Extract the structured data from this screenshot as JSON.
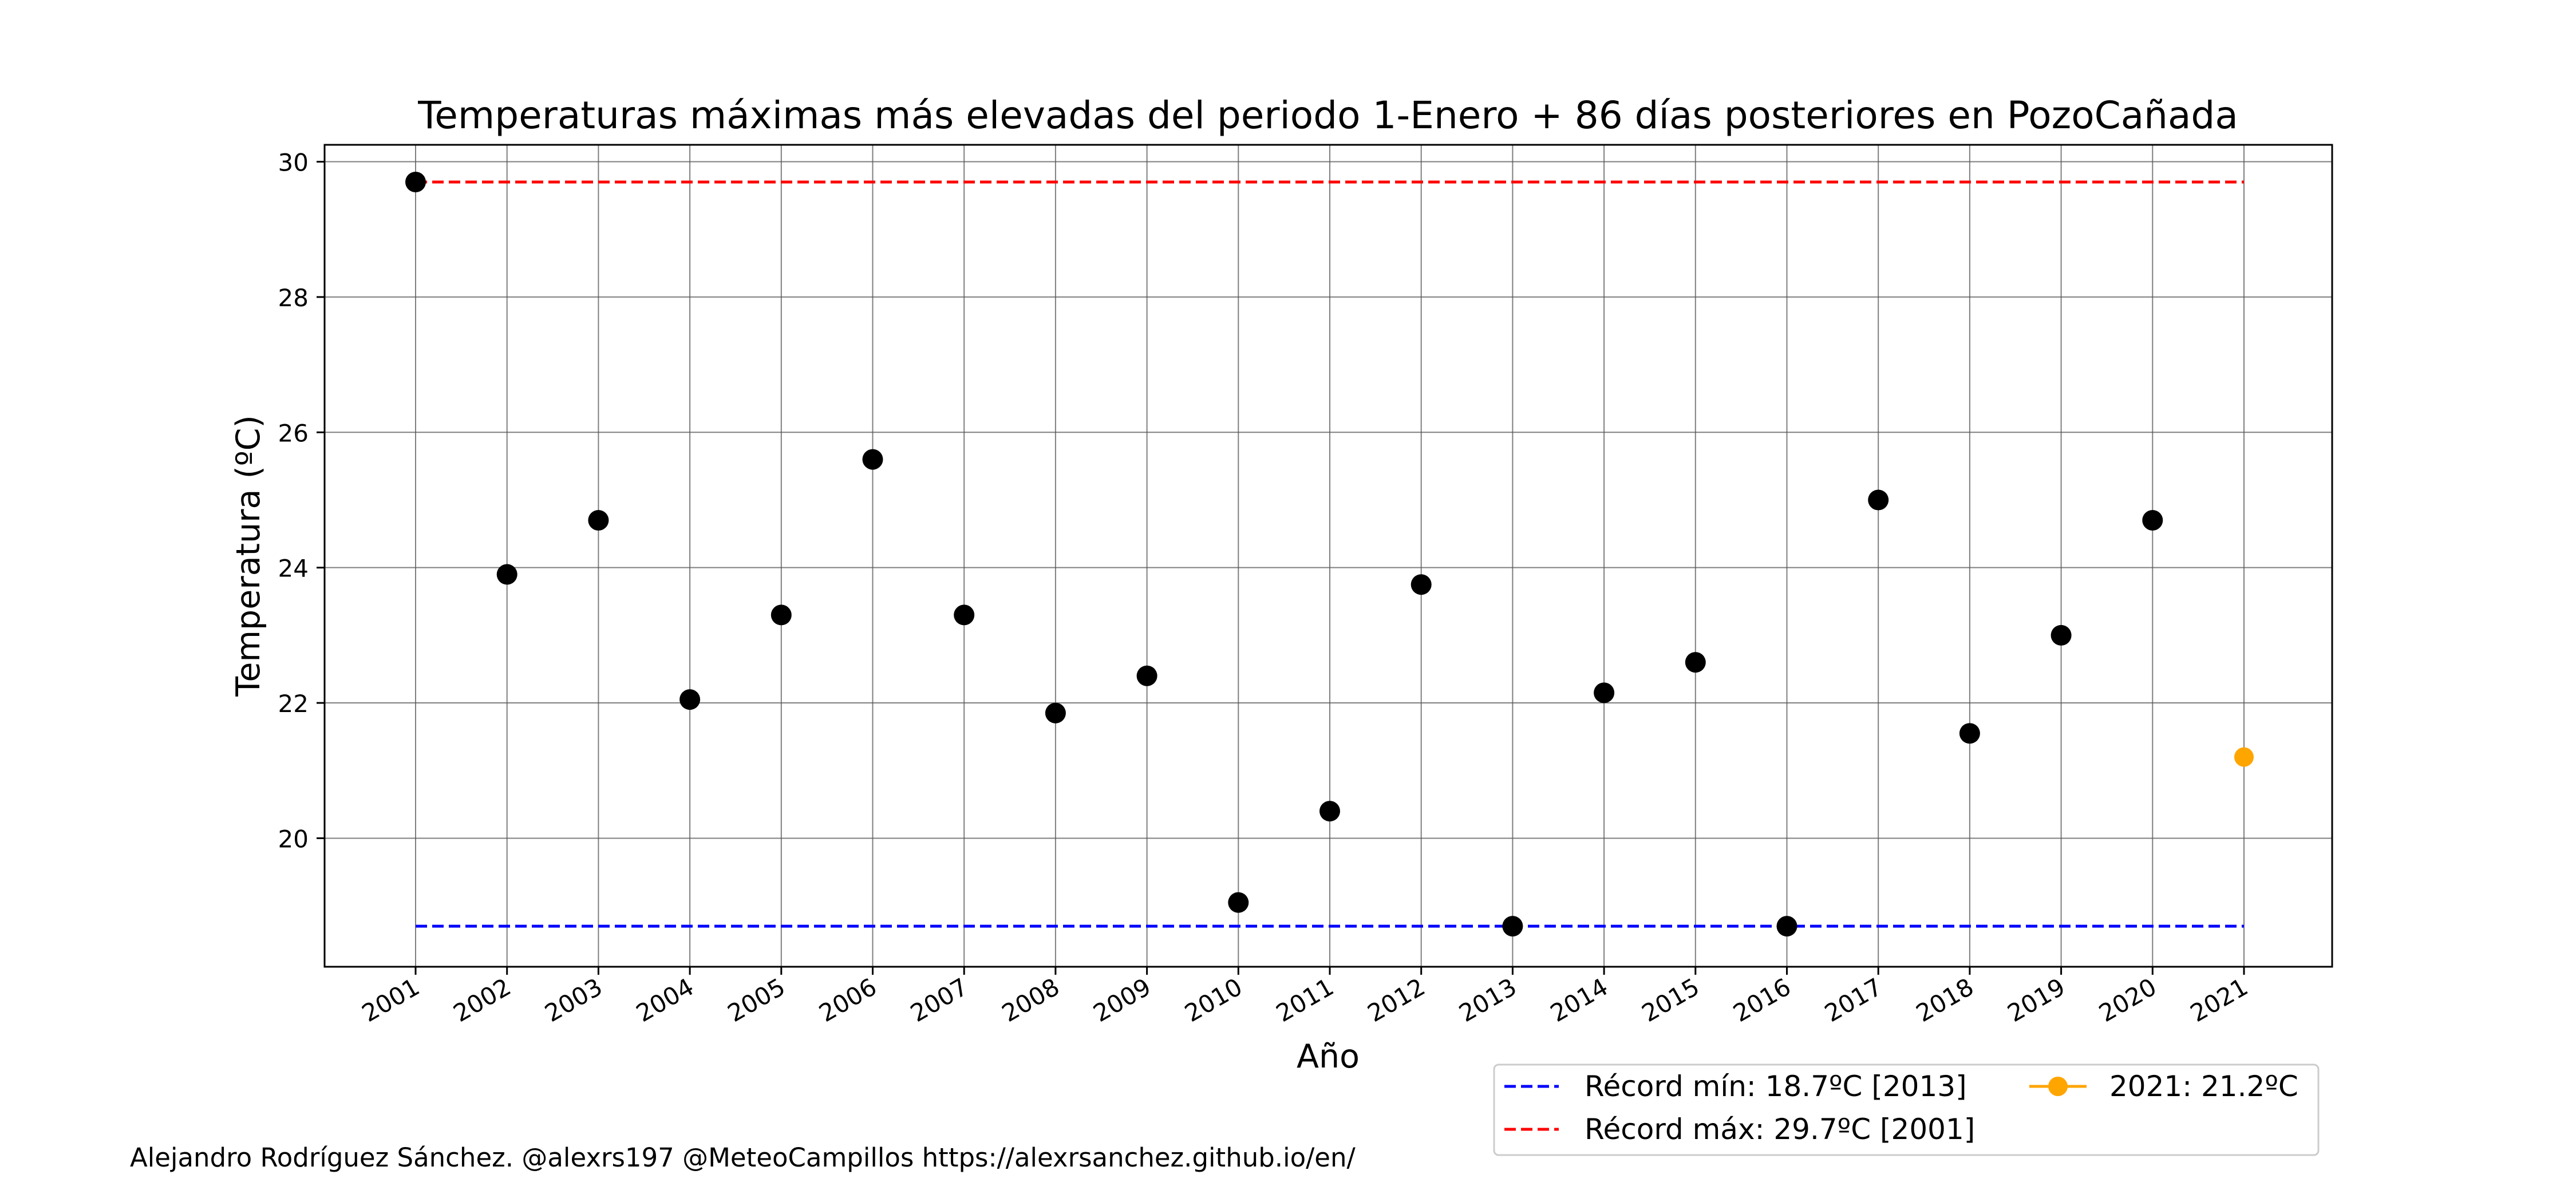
{
  "chart_data": {
    "type": "scatter",
    "title": "Temperaturas máximas más elevadas del periodo 1-Enero + 86 días posteriores en PozoCañada",
    "xlabel": "Año",
    "ylabel": "Temperatura (ºC)",
    "categories": [
      "2001",
      "2002",
      "2003",
      "2004",
      "2005",
      "2006",
      "2007",
      "2008",
      "2009",
      "2010",
      "2011",
      "2012",
      "2013",
      "2014",
      "2015",
      "2016",
      "2017",
      "2018",
      "2019",
      "2020",
      "2021"
    ],
    "ylim": [
      18.1,
      30.25
    ],
    "yticks": [
      20,
      22,
      24,
      26,
      28,
      30
    ],
    "grid": true,
    "series": [
      {
        "kind": "points",
        "color": "#000000",
        "x": [
          "2001",
          "2002",
          "2003",
          "2004",
          "2005",
          "2006",
          "2007",
          "2008",
          "2009",
          "2010",
          "2011",
          "2012",
          "2013",
          "2014",
          "2015",
          "2016",
          "2017",
          "2018",
          "2019",
          "2020"
        ],
        "values": [
          29.7,
          23.9,
          24.7,
          22.05,
          23.3,
          25.6,
          23.3,
          21.85,
          22.4,
          19.05,
          20.4,
          23.75,
          18.7,
          22.15,
          22.6,
          18.7,
          25.0,
          21.55,
          23.0,
          24.7
        ]
      },
      {
        "kind": "point",
        "name": "2021: 21.2ºC",
        "color": "#FFA500",
        "x": [
          "2021"
        ],
        "values": [
          21.2
        ]
      },
      {
        "kind": "hline",
        "name": "Récord mín: 18.7ºC [2013]",
        "color": "#0000FF",
        "value": 18.7,
        "from": "2001",
        "to": "2021"
      },
      {
        "kind": "hline",
        "name": "Récord máx: 29.7ºC [2001]",
        "color": "#FF0000",
        "value": 29.7,
        "from": "2001",
        "to": "2021"
      }
    ],
    "legend_position": "bottom-right"
  },
  "credit": "Alejandro Rodríguez Sánchez. @alexrs197 @MeteoCampillos   https://alexrsanchez.github.io/en/"
}
